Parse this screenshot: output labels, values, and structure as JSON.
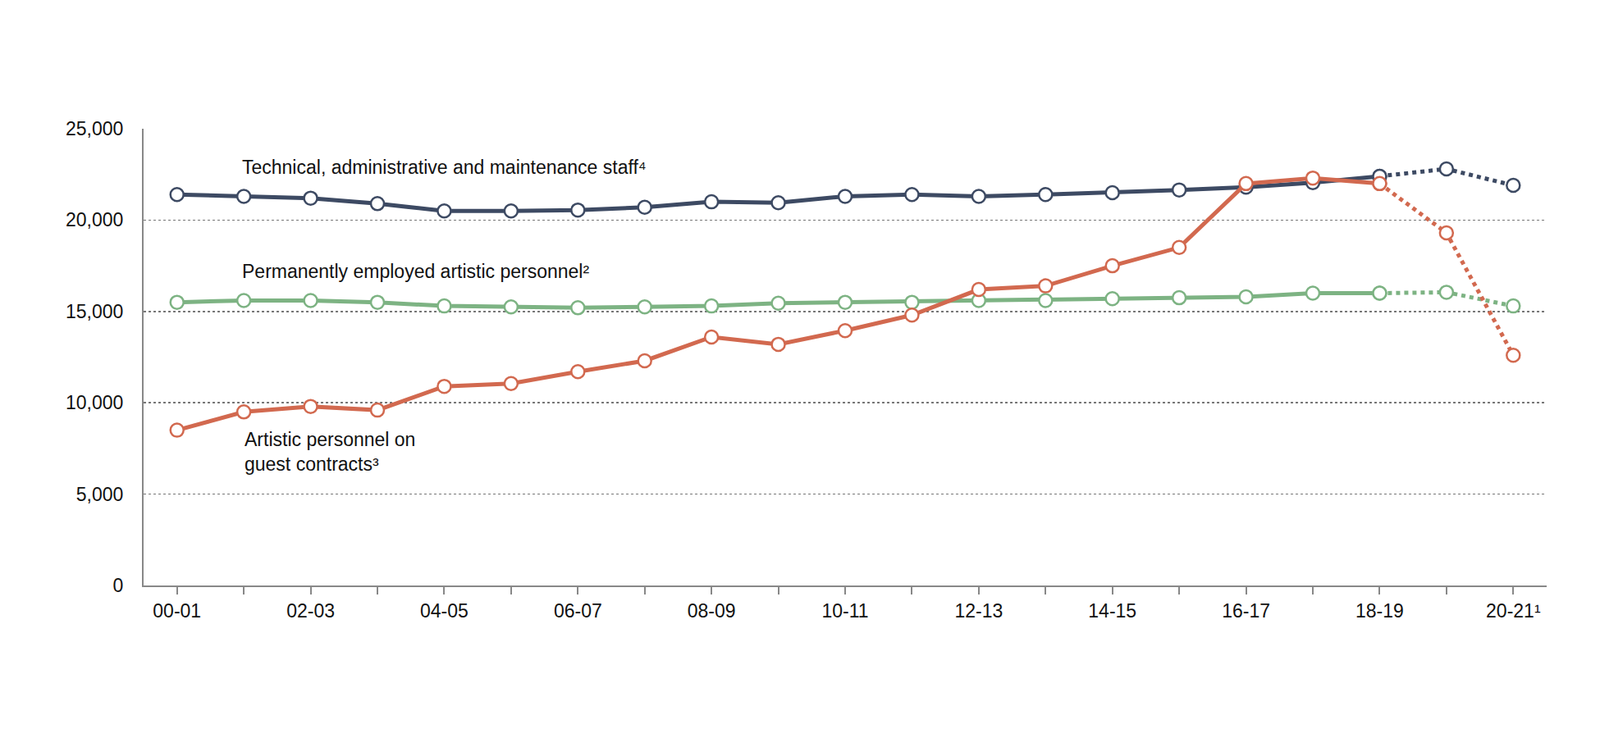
{
  "chart_data": {
    "type": "line",
    "categories": [
      "00-01",
      null,
      "02-03",
      null,
      "04-05",
      null,
      "06-07",
      null,
      "08-09",
      null,
      "10-11",
      null,
      "12-13",
      null,
      "14-15",
      null,
      "16-17",
      null,
      "18-19",
      null,
      "20-21¹"
    ],
    "series": [
      {
        "name": "Technical, administrative and maintenance staff⁴",
        "color": "#3d4a63",
        "marker": "open-circle",
        "line_style": "solid",
        "values": [
          21400,
          21300,
          21200,
          20900,
          20500,
          20500,
          20550,
          20700,
          21000,
          20950,
          21300,
          21400,
          21300,
          21400,
          21500,
          21650,
          21800,
          22050,
          22400,
          null,
          null
        ]
      },
      {
        "name": "Permanently employed artistic personnel²",
        "color": "#7db383",
        "marker": "open-circle",
        "line_style": "solid",
        "values": [
          15500,
          15600,
          15600,
          15500,
          15300,
          15250,
          15200,
          15250,
          15300,
          15450,
          15500,
          15500,
          15600,
          15600,
          15700,
          15750,
          15800,
          16000,
          16000,
          null,
          null
        ]
      },
      {
        "name": "Artistic personnel on guest contracts³",
        "color": "#d2694f",
        "marker": "open-circle",
        "line_style": "solid",
        "values": [
          8500,
          9500,
          9800,
          9600,
          10900,
          11050,
          11700,
          12300,
          13600,
          13200,
          13950,
          14800,
          16200,
          16400,
          17500,
          18500,
          22000,
          22300,
          22000,
          null,
          null
        ]
      },
      {
        "color": "#3d4a63",
        "marker": "open-circle",
        "line_style": "dotted",
        "values": [
          null,
          null,
          null,
          null,
          null,
          null,
          null,
          null,
          null,
          null,
          null,
          null,
          null,
          null,
          null,
          null,
          null,
          null,
          22400,
          22800,
          21900
        ]
      },
      {
        "color": "#7db383",
        "marker": "open-circle",
        "line_style": "dotted",
        "values": [
          null,
          null,
          null,
          null,
          null,
          null,
          null,
          null,
          null,
          null,
          null,
          null,
          null,
          null,
          null,
          null,
          null,
          null,
          16000,
          16050,
          15300
        ]
      },
      {
        "color": "#d2694f",
        "marker": "open-circle",
        "line_style": "dotted",
        "values": [
          null,
          null,
          null,
          null,
          null,
          null,
          null,
          null,
          null,
          null,
          null,
          null,
          null,
          null,
          null,
          null,
          null,
          null,
          22000,
          19300,
          12600
        ]
      }
    ],
    "ylim": [
      0,
      25000
    ],
    "yticks": [
      0,
      {
        "value": 5000,
        "label": "5,000"
      },
      {
        "value": 10000,
        "label": "10,000"
      },
      {
        "value": 15000,
        "label": "15,000"
      },
      {
        "value": 20000,
        "label": "20,000"
      },
      {
        "value": 25000,
        "label": "25,000"
      }
    ],
    "grid": true
  }
}
